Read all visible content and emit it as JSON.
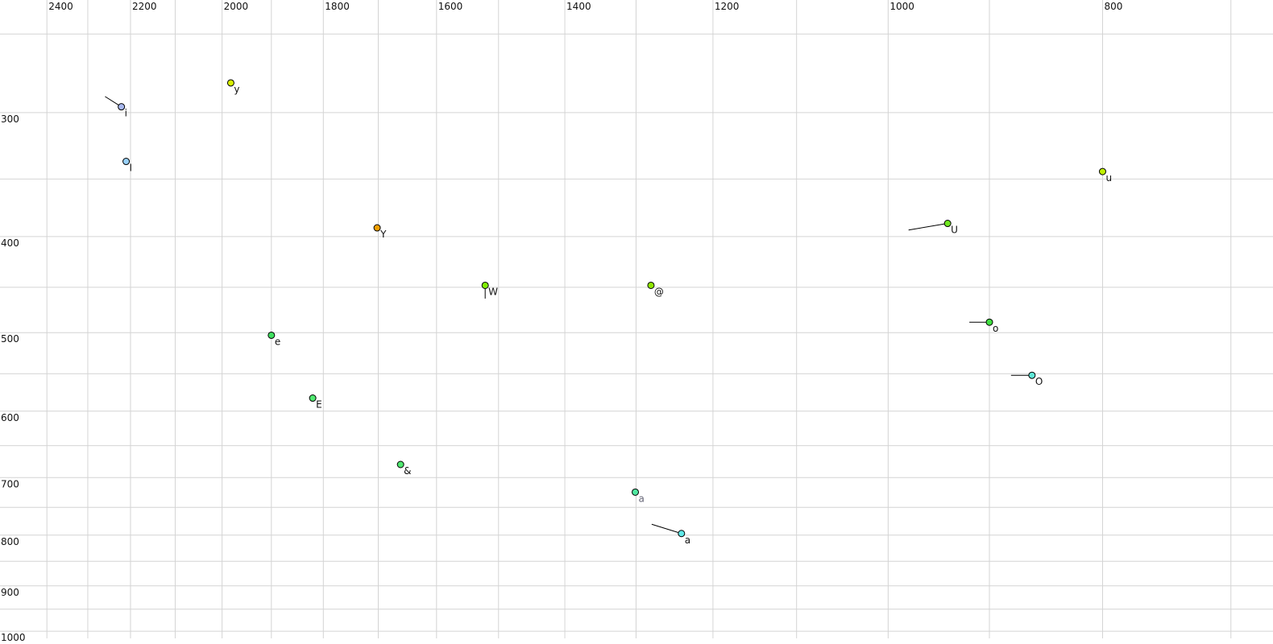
{
  "chart_data": {
    "type": "scatter",
    "title": "",
    "xlabel": "",
    "ylabel": "",
    "x_scale": "log",
    "y_scale": "log",
    "x_reversed": true,
    "xlim": [
      2520,
      670
    ],
    "ylim": [
      231,
      1030
    ],
    "grid": true,
    "x_grid": [
      2400,
      2300,
      2200,
      2100,
      2000,
      1900,
      1800,
      1700,
      1600,
      1500,
      1400,
      1300,
      1200,
      1100,
      1000,
      900,
      800,
      700
    ],
    "y_grid": [
      250,
      300,
      350,
      400,
      450,
      500,
      550,
      600,
      650,
      700,
      750,
      800,
      850,
      900,
      950,
      1000
    ],
    "x_tick_labels": [
      "2400",
      "2200",
      "2000",
      "1800",
      "1600",
      "1400",
      "1200",
      "1000",
      "800"
    ],
    "y_tick_labels": [
      "300",
      "400",
      "500",
      "600",
      "700",
      "800",
      "900",
      "1000"
    ],
    "points": [
      {
        "label": "i",
        "x": 2221,
        "y": 296,
        "color": "#a8b8f0",
        "trail": [
          2259,
          289
        ]
      },
      {
        "label": "I",
        "x": 2210,
        "y": 336,
        "color": "#98d0f8"
      },
      {
        "label": "y",
        "x": 1982,
        "y": 280,
        "color": "#d8f000"
      },
      {
        "label": "Y",
        "x": 1702,
        "y": 392,
        "color": "#f0a000"
      },
      {
        "label": "W",
        "x": 1521,
        "y": 448,
        "color": "#80f000",
        "trail": [
          1521,
          462
        ]
      },
      {
        "label": "@",
        "x": 1280,
        "y": 448,
        "color": "#90e800"
      },
      {
        "label": "e",
        "x": 1900,
        "y": 503,
        "color": "#40e060"
      },
      {
        "label": "E",
        "x": 1820,
        "y": 582,
        "color": "#50e870"
      },
      {
        "label": "&",
        "x": 1661,
        "y": 679,
        "color": "#50e870"
      },
      {
        "label": "a",
        "x": 1301,
        "y": 724,
        "color": "#50e8a0",
        "label_color": "#666677"
      },
      {
        "label": "a",
        "x": 1240,
        "y": 797,
        "color": "#60e8e8",
        "trail": [
          1279,
          780
        ]
      },
      {
        "label": "U",
        "x": 940,
        "y": 388,
        "color": "#70e820",
        "trail": [
          979,
          394
        ]
      },
      {
        "label": "u",
        "x": 800,
        "y": 344,
        "color": "#c0f000"
      },
      {
        "label": "o",
        "x": 900,
        "y": 488,
        "color": "#40e040",
        "trail": [
          919,
          488
        ]
      },
      {
        "label": "O",
        "x": 861,
        "y": 552,
        "color": "#60e8d8",
        "trail": [
          880,
          552
        ]
      }
    ]
  }
}
